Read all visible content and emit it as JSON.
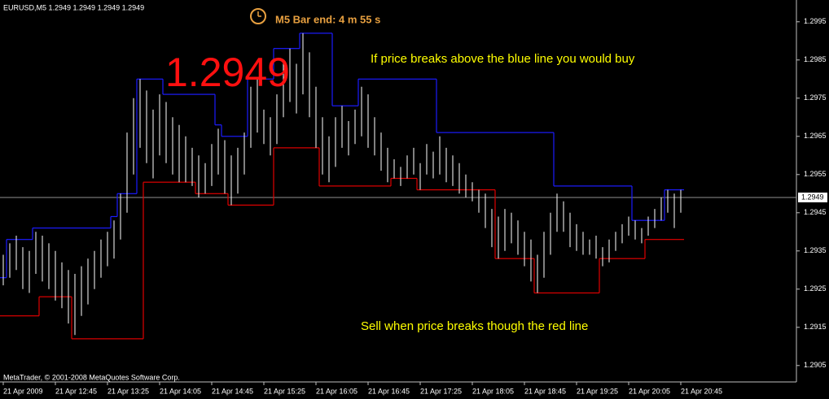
{
  "chart_data": {
    "type": "price_channel",
    "symbol_header": "EURUSD,M5  1.2949 1.2949 1.2949 1.2949",
    "timer": "M5 Bar end: 4 m 55 s",
    "big_price": "1.2949",
    "annotation_buy": "If price breaks above the blue line you would buy",
    "annotation_sell": "Sell when price breaks though the red line",
    "footer": "MetaTrader, © 2001-2008 MetaQuotes Software Corp.",
    "last_price": 1.2949,
    "ylim": [
      1.29007,
      1.30007
    ],
    "yticks": [
      1.2995,
      1.2985,
      1.2975,
      1.2965,
      1.2955,
      1.2945,
      1.2935,
      1.2925,
      1.2915,
      1.2905
    ],
    "categories": [
      "21 Apr 2009",
      null,
      null,
      null,
      null,
      null,
      null,
      null,
      "21 Apr 12:45",
      null,
      null,
      null,
      null,
      null,
      null,
      null,
      "21 Apr 13:25",
      null,
      null,
      null,
      null,
      null,
      null,
      null,
      "21 Apr 14:05",
      null,
      null,
      null,
      null,
      null,
      null,
      null,
      "21 Apr 14:45",
      null,
      null,
      null,
      null,
      null,
      null,
      null,
      "21 Apr 15:25",
      null,
      null,
      null,
      null,
      null,
      null,
      null,
      "21 Apr 16:05",
      null,
      null,
      null,
      null,
      null,
      null,
      null,
      "21 Apr 16:45",
      null,
      null,
      null,
      null,
      null,
      null,
      null,
      "21 Apr 17:25",
      null,
      null,
      null,
      null,
      null,
      null,
      null,
      "21 Apr 18:05",
      null,
      null,
      null,
      null,
      null,
      null,
      null,
      "21 Apr 18:45",
      null,
      null,
      null,
      null,
      null,
      null,
      null,
      "21 Apr 19:25",
      null,
      null,
      null,
      null,
      null,
      null,
      null,
      "21 Apr 20:05",
      null,
      null,
      null,
      null,
      null,
      null,
      null,
      "21 Apr 20:45"
    ],
    "bar_color": "#ffffff",
    "highs": [
      1.2934,
      1.2937,
      1.2939,
      1.2936,
      1.2935,
      1.294,
      1.2939,
      1.2937,
      1.2935,
      1.2932,
      1.293,
      1.2929,
      1.2931,
      1.2933,
      1.2935,
      1.2938,
      1.294,
      1.2943,
      1.295,
      1.2966,
      1.2975,
      1.298,
      1.2977,
      1.2972,
      1.2976,
      1.2974,
      1.297,
      1.2968,
      1.2965,
      1.2962,
      1.296,
      1.2958,
      1.2963,
      1.2967,
      1.2964,
      1.296,
      1.2962,
      1.2966,
      1.2978,
      1.298,
      1.2972,
      1.297,
      1.2976,
      1.2985,
      1.2988,
      1.2984,
      1.2992,
      1.2987,
      1.2978,
      1.297,
      1.2965,
      1.297,
      1.2973,
      1.2969,
      1.2972,
      1.2978,
      1.2976,
      1.297,
      1.2966,
      1.2962,
      1.2959,
      1.2957,
      1.296,
      1.2962,
      1.2958,
      1.2963,
      1.2961,
      1.2965,
      1.2962,
      1.296,
      1.2958,
      1.2955,
      1.2953,
      1.2951,
      1.295,
      1.2946,
      1.2944,
      1.2946,
      1.2945,
      1.2943,
      1.294,
      1.2938,
      1.2934,
      1.294,
      1.2945,
      1.295,
      1.2948,
      1.2945,
      1.2942,
      1.294,
      1.2938,
      1.2939,
      1.2936,
      1.2938,
      1.294,
      1.2942,
      1.2944,
      1.2943,
      1.2941,
      1.2944,
      1.2946,
      1.2949,
      1.2951,
      1.295,
      1.2951
    ],
    "lows": [
      1.2926,
      1.2928,
      1.293,
      1.2925,
      1.2924,
      1.2929,
      1.2927,
      1.2925,
      1.2922,
      1.292,
      1.2916,
      1.2913,
      1.2918,
      1.2921,
      1.2925,
      1.2928,
      1.2931,
      1.2933,
      1.2938,
      1.2945,
      1.2955,
      1.2962,
      1.2958,
      1.2954,
      1.296,
      1.2958,
      1.2955,
      1.2953,
      1.2953,
      1.2952,
      1.2949,
      1.295,
      1.2952,
      1.2955,
      1.295,
      1.2947,
      1.295,
      1.2955,
      1.2962,
      1.2966,
      1.2963,
      1.296,
      1.2963,
      1.297,
      1.2974,
      1.2971,
      1.2976,
      1.297,
      1.2962,
      1.2955,
      1.2953,
      1.2957,
      1.2962,
      1.296,
      1.2963,
      1.2965,
      1.2962,
      1.296,
      1.2956,
      1.2953,
      1.2954,
      1.2952,
      1.2954,
      1.2955,
      1.2951,
      1.2955,
      1.2954,
      1.2955,
      1.2953,
      1.2952,
      1.295,
      1.2949,
      1.2948,
      1.2945,
      1.2941,
      1.2936,
      1.2933,
      1.2935,
      1.2937,
      1.2934,
      1.2931,
      1.2927,
      1.2924,
      1.2928,
      1.2934,
      1.294,
      1.294,
      1.2936,
      1.2935,
      1.2934,
      1.2934,
      1.2933,
      1.2931,
      1.2932,
      1.2935,
      1.2937,
      1.2939,
      1.2938,
      1.2937,
      1.2939,
      1.2941,
      1.2943,
      1.2945,
      1.2941,
      1.2945
    ],
    "series": [
      {
        "name": "Upper channel",
        "color": "#1c1cff",
        "values": [
          1.2928,
          1.2938,
          1.2938,
          1.2938,
          1.2938,
          1.2941,
          1.2941,
          1.2941,
          1.2941,
          1.2941,
          1.2941,
          1.2941,
          1.2941,
          1.2941,
          1.2941,
          1.2941,
          1.2941,
          1.2944,
          1.295,
          1.295,
          1.295,
          1.298,
          1.298,
          1.298,
          1.298,
          1.2976,
          1.2976,
          1.2976,
          1.2976,
          1.2976,
          1.2976,
          1.2976,
          1.2976,
          1.2968,
          1.2965,
          1.2965,
          1.2965,
          1.2965,
          1.298,
          1.298,
          1.298,
          1.298,
          1.2988,
          1.2988,
          1.2988,
          1.2988,
          1.2992,
          1.2992,
          1.2992,
          1.2992,
          1.2992,
          1.2973,
          1.2973,
          1.2973,
          1.2973,
          1.298,
          1.298,
          1.298,
          1.298,
          1.298,
          1.298,
          1.298,
          1.298,
          1.298,
          1.298,
          1.298,
          1.298,
          1.2966,
          1.2966,
          1.2966,
          1.2966,
          1.2966,
          1.2966,
          1.2966,
          1.2966,
          1.2966,
          1.2966,
          1.2966,
          1.2966,
          1.2966,
          1.2966,
          1.2966,
          1.2966,
          1.2966,
          1.2966,
          1.2952,
          1.2952,
          1.2952,
          1.2952,
          1.2952,
          1.2952,
          1.2952,
          1.2952,
          1.2952,
          1.2952,
          1.2952,
          1.2952,
          1.2943,
          1.2943,
          1.2943,
          1.2943,
          1.2943,
          1.2951,
          1.2951,
          1.2951
        ]
      },
      {
        "name": "Lower channel",
        "color": "#e00000",
        "values": [
          1.2918,
          1.2918,
          1.2918,
          1.2918,
          1.2918,
          1.2918,
          1.2923,
          1.2923,
          1.2923,
          1.2923,
          1.2923,
          1.2912,
          1.2912,
          1.2912,
          1.2912,
          1.2912,
          1.2912,
          1.2912,
          1.2912,
          1.2912,
          1.2912,
          1.2912,
          1.2953,
          1.2953,
          1.2953,
          1.2953,
          1.2953,
          1.2953,
          1.2953,
          1.2953,
          1.295,
          1.295,
          1.295,
          1.295,
          1.295,
          1.2947,
          1.2947,
          1.2947,
          1.2947,
          1.2947,
          1.2947,
          1.2947,
          1.2962,
          1.2962,
          1.2962,
          1.2962,
          1.2962,
          1.2962,
          1.2962,
          1.2952,
          1.2952,
          1.2952,
          1.2952,
          1.2952,
          1.2952,
          1.2952,
          1.2952,
          1.2952,
          1.2952,
          1.2952,
          1.2954,
          1.2954,
          1.2954,
          1.2954,
          1.2951,
          1.2951,
          1.2951,
          1.2951,
          1.2951,
          1.2951,
          1.2951,
          1.2951,
          1.2951,
          1.2951,
          1.2951,
          1.2951,
          1.2933,
          1.2933,
          1.2933,
          1.2933,
          1.2933,
          1.2933,
          1.2924,
          1.2924,
          1.2924,
          1.2924,
          1.2924,
          1.2924,
          1.2924,
          1.2924,
          1.2924,
          1.2924,
          1.2933,
          1.2933,
          1.2933,
          1.2933,
          1.2933,
          1.2933,
          1.2933,
          1.2938,
          1.2938,
          1.2938,
          1.2938,
          1.2938,
          1.2938
        ]
      }
    ]
  }
}
